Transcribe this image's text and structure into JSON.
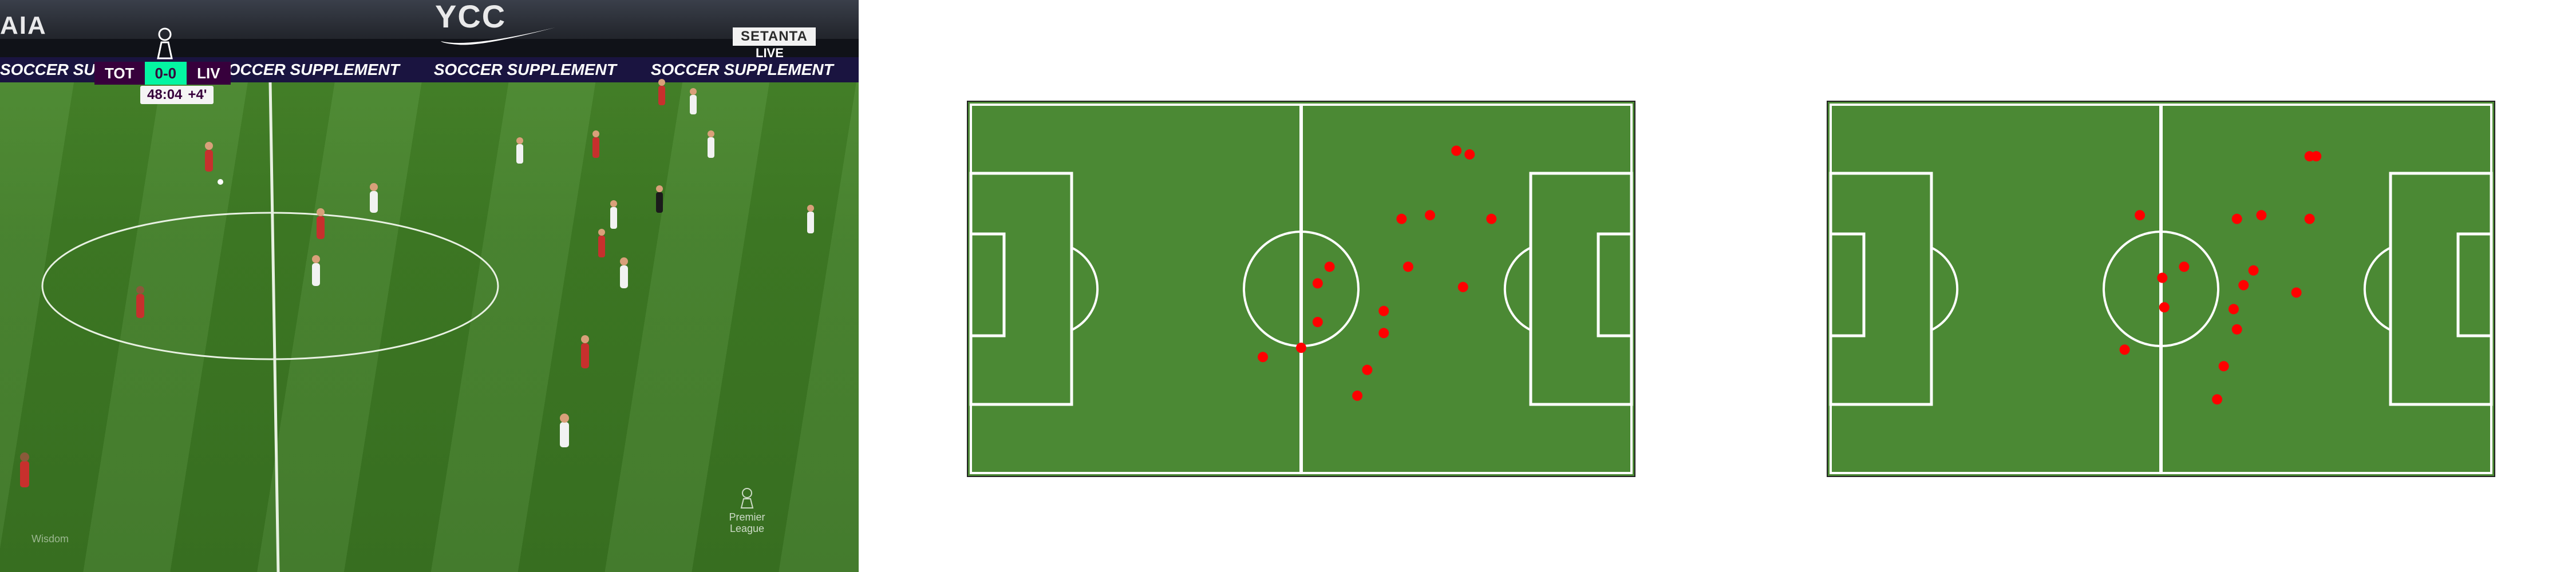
{
  "broadcast": {
    "scorebug": {
      "home": "TOT",
      "score": "0-0",
      "away": "LIV",
      "clock": "48:04",
      "added_time": "+4'"
    },
    "channel": {
      "name": "SETANTA",
      "status": "LIVE"
    },
    "ad_board": "SOCCER SUPPLEMENT",
    "stand_lettering": [
      "AIA",
      "YCC"
    ],
    "logo_text": "Premier League",
    "watermark": "Wisdom",
    "colors": {
      "red_team": "#c7302d",
      "white_team": "#f2f2f2",
      "pitch": "#3f7c25"
    },
    "icons": [
      "premier-league-crown-icon",
      "premier-league-logo-icon",
      "tv-icon"
    ]
  },
  "maps": [
    {
      "name": "map-a",
      "pitch_color": "#4b8934",
      "line_color": "#ffffff",
      "marker_color": "#ff0000",
      "players": [
        {
          "x": 73.5,
          "y": 12.5
        },
        {
          "x": 75.5,
          "y": 13.5
        },
        {
          "x": 65.2,
          "y": 31
        },
        {
          "x": 69.5,
          "y": 30
        },
        {
          "x": 78.8,
          "y": 31
        },
        {
          "x": 54.3,
          "y": 44
        },
        {
          "x": 52.5,
          "y": 48.5
        },
        {
          "x": 66.2,
          "y": 44
        },
        {
          "x": 74.5,
          "y": 49.5
        },
        {
          "x": 62.5,
          "y": 56
        },
        {
          "x": 52.5,
          "y": 59
        },
        {
          "x": 62.5,
          "y": 62
        },
        {
          "x": 50,
          "y": 66
        },
        {
          "x": 44.2,
          "y": 68.5
        },
        {
          "x": 60,
          "y": 72
        },
        {
          "x": 58.5,
          "y": 79
        }
      ]
    },
    {
      "name": "map-b",
      "pitch_color": "#4b8934",
      "line_color": "#ffffff",
      "marker_color": "#ff0000",
      "players": [
        {
          "x": 72.5,
          "y": 14
        },
        {
          "x": 73.5,
          "y": 14
        },
        {
          "x": 46.8,
          "y": 30
        },
        {
          "x": 61.5,
          "y": 31
        },
        {
          "x": 65.2,
          "y": 30
        },
        {
          "x": 72.5,
          "y": 31
        },
        {
          "x": 53.5,
          "y": 44
        },
        {
          "x": 50.2,
          "y": 47
        },
        {
          "x": 64,
          "y": 45
        },
        {
          "x": 62.5,
          "y": 49
        },
        {
          "x": 70.5,
          "y": 51
        },
        {
          "x": 61,
          "y": 55.5
        },
        {
          "x": 50.5,
          "y": 55
        },
        {
          "x": 61.5,
          "y": 61
        },
        {
          "x": 44.5,
          "y": 66.5
        },
        {
          "x": 59.5,
          "y": 71
        },
        {
          "x": 58.5,
          "y": 80
        }
      ]
    }
  ]
}
